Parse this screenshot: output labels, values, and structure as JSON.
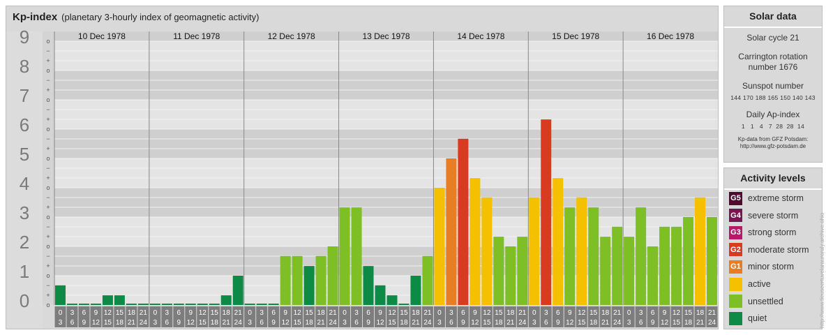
{
  "header": {
    "title": "Kp-index",
    "subtitle": "(planetary 3-hourly index of geomagnetic activity)"
  },
  "solar_data": {
    "title": "Solar data",
    "cycle": "Solar cycle 21",
    "carrington_line1": "Carrington rotation",
    "carrington_line2": "number 1676",
    "sunspot_title": "Sunspot number",
    "sunspot_values": "144 170 188 165 150 140 143",
    "ap_title": "Daily Ap-index",
    "ap_values": "1   1   4   7  28  28  14",
    "source_line1": "Kp-data from  GFZ Potsdam:",
    "source_line2": "http://www.gfz-potsdam.de"
  },
  "activity_levels": {
    "title": "Activity levels",
    "items": [
      {
        "code": "G5",
        "label": "extreme storm",
        "color": "#4d0b2e"
      },
      {
        "code": "G4",
        "label": "severe storm",
        "color": "#7a1450"
      },
      {
        "code": "G3",
        "label": "strong storm",
        "color": "#b8186a"
      },
      {
        "code": "G2",
        "label": "moderate storm",
        "color": "#d93a20"
      },
      {
        "code": "G1",
        "label": "minor storm",
        "color": "#e87d25"
      },
      {
        "code": "",
        "label": "active",
        "color": "#f5c000"
      },
      {
        "code": "",
        "label": "unsettled",
        "color": "#7dbf24"
      },
      {
        "code": "",
        "label": "quiet",
        "color": "#0c8a46"
      }
    ]
  },
  "credit": "http://www.tieuseertuvelarauroraly.archive.ohio",
  "chart_data": {
    "type": "bar",
    "title": "Kp-index",
    "subtitle": "(planetary 3-hourly index of geomagnetic activity)",
    "days": [
      "10 Dec 1978",
      "11 Dec 1978",
      "12 Dec 1978",
      "13 Dec 1978",
      "14 Dec 1978",
      "15 Dec 1978",
      "16 Dec 1978"
    ],
    "interval_starts": [
      "0",
      "3",
      "6",
      "9",
      "12",
      "15",
      "18",
      "21"
    ],
    "interval_ends": [
      "3",
      "6",
      "9",
      "12",
      "15",
      "18",
      "21",
      "24"
    ],
    "y_ticks": [
      "0",
      "1",
      "2",
      "3",
      "4",
      "5",
      "6",
      "7",
      "8",
      "9"
    ],
    "y_subticks": [
      "o",
      "+",
      "−"
    ],
    "ylim": [
      0,
      9.33
    ],
    "grid": true,
    "values": [
      [
        0.67,
        0,
        0,
        0,
        0.33,
        0.33,
        0,
        0
      ],
      [
        0,
        0,
        0,
        0,
        0,
        0,
        0.33,
        1
      ],
      [
        0,
        0,
        0,
        1.67,
        1.67,
        1.33,
        1.67,
        2
      ],
      [
        3.33,
        3.33,
        1.33,
        0.67,
        0.33,
        0,
        1,
        1.67
      ],
      [
        4,
        5,
        5.67,
        4.33,
        3.67,
        2.33,
        2,
        2.33
      ],
      [
        3.67,
        6.33,
        4.33,
        3.33,
        3.67,
        3.33,
        2.33,
        2.67
      ],
      [
        2.33,
        3.33,
        2,
        2.67,
        2.67,
        3,
        3.67,
        3
      ]
    ],
    "colors": {
      "quiet": "#0c8a46",
      "unsettled": "#7dbf24",
      "active": "#f5c000",
      "G1": "#e87d25",
      "G2": "#d93a20",
      "G3": "#b8186a",
      "G4": "#7a1450",
      "G5": "#4d0b2e"
    }
  }
}
